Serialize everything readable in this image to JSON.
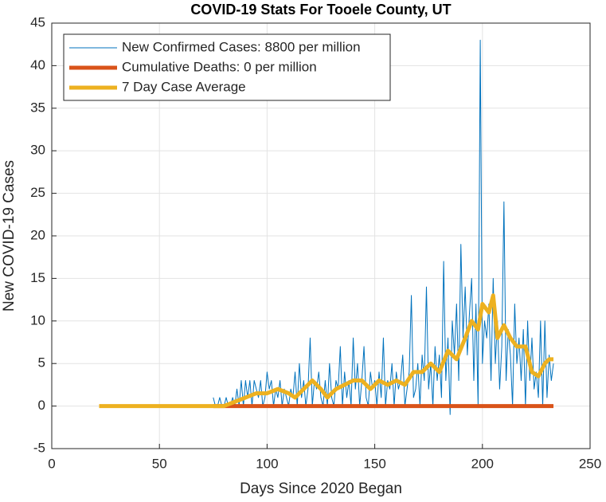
{
  "chart_data": {
    "type": "line",
    "title": "COVID-19 Stats For Tooele County, UT",
    "xlabel": "Days Since 2020 Began",
    "ylabel": "New COVID-19 Cases",
    "xlim": [
      0,
      250
    ],
    "xticks": [
      0,
      50,
      100,
      150,
      200,
      250
    ],
    "ylim": [
      -5,
      45
    ],
    "yticks": [
      -5,
      0,
      5,
      10,
      15,
      20,
      25,
      30,
      35,
      40,
      45
    ],
    "grid": true,
    "legend": "top-left",
    "series": [
      {
        "name": "New Confirmed Cases: 8800 per million",
        "color": "#0072BD",
        "width": 1,
        "x": [
          75,
          76,
          77,
          78,
          79,
          80,
          81,
          82,
          83,
          84,
          85,
          86,
          87,
          88,
          89,
          90,
          91,
          92,
          93,
          94,
          95,
          96,
          97,
          98,
          99,
          100,
          101,
          102,
          103,
          104,
          105,
          106,
          107,
          108,
          109,
          110,
          111,
          112,
          113,
          114,
          115,
          116,
          117,
          118,
          119,
          120,
          121,
          122,
          123,
          124,
          125,
          126,
          127,
          128,
          129,
          130,
          131,
          132,
          133,
          134,
          135,
          136,
          137,
          138,
          139,
          140,
          141,
          142,
          143,
          144,
          145,
          146,
          147,
          148,
          149,
          150,
          151,
          152,
          153,
          154,
          155,
          156,
          157,
          158,
          159,
          160,
          161,
          162,
          163,
          164,
          165,
          166,
          167,
          168,
          169,
          170,
          171,
          172,
          173,
          174,
          175,
          176,
          177,
          178,
          179,
          180,
          181,
          182,
          183,
          184,
          185,
          186,
          187,
          188,
          189,
          190,
          191,
          192,
          193,
          194,
          195,
          196,
          197,
          198,
          199,
          200,
          201,
          202,
          203,
          204,
          205,
          206,
          207,
          208,
          209,
          210,
          211,
          212,
          213,
          214,
          215,
          216,
          217,
          218,
          219,
          220,
          221,
          222,
          223,
          224,
          225,
          226,
          227,
          228,
          229,
          230,
          231,
          232,
          233
        ],
        "values": [
          1,
          0,
          0,
          1,
          0,
          0,
          1,
          0,
          0,
          1,
          0,
          2,
          0,
          3,
          0,
          3,
          1,
          3,
          0,
          3,
          2,
          1,
          3,
          0,
          1,
          4,
          2,
          3,
          0,
          2,
          1,
          3,
          0,
          2,
          1,
          0,
          2,
          1,
          4,
          0,
          5,
          1,
          3,
          0,
          2,
          8,
          0,
          3,
          2,
          4,
          1,
          0,
          3,
          0,
          5,
          1,
          0,
          3,
          2,
          7,
          0,
          4,
          1,
          3,
          0,
          8,
          2,
          5,
          0,
          3,
          7,
          1,
          0,
          4,
          2,
          3,
          0,
          4,
          1,
          8,
          0,
          3,
          2,
          5,
          0,
          4,
          2,
          3,
          6,
          0,
          2,
          4,
          13,
          1,
          2,
          5,
          0,
          6,
          3,
          14,
          2,
          5,
          0,
          7,
          3,
          6,
          1,
          17,
          3,
          8,
          -1,
          10,
          6,
          12,
          3,
          19,
          8,
          14,
          6,
          11,
          15,
          3,
          12,
          0,
          43,
          5,
          10,
          8,
          12,
          3,
          15,
          5,
          10,
          2,
          7,
          24,
          3,
          9,
          6,
          0,
          12,
          5,
          8,
          3,
          9,
          0,
          10,
          3,
          8,
          2,
          4,
          1,
          10,
          0,
          10,
          1,
          6,
          3,
          5
        ]
      },
      {
        "name": "Cumulative Deaths: 0 per million",
        "color": "#D95319",
        "width": 5,
        "x": [
          75,
          233
        ],
        "values": [
          0,
          0
        ]
      },
      {
        "name": "7 Day Case Average",
        "color": "#EDB120",
        "width": 5,
        "x": [
          22,
          75,
          80,
          85,
          90,
          95,
          100,
          105,
          110,
          113,
          117,
          121,
          125,
          128,
          132,
          136,
          140,
          144,
          148,
          152,
          156,
          160,
          164,
          168,
          172,
          176,
          180,
          184,
          188,
          192,
          195,
          198,
          200,
          203,
          205,
          207,
          210,
          213,
          216,
          220,
          223,
          226,
          229,
          231,
          233
        ],
        "values": [
          0,
          0,
          0,
          0.5,
          1,
          1.5,
          1.5,
          2,
          1.5,
          1,
          2,
          3,
          2,
          1,
          2,
          2.5,
          3,
          3,
          2,
          3,
          2.5,
          3,
          2.5,
          4,
          4,
          5,
          4,
          6.5,
          5.5,
          8,
          10,
          9,
          12,
          11,
          13,
          8,
          9.5,
          8,
          7,
          7,
          4,
          3.5,
          5,
          5.5,
          5.5
        ]
      }
    ]
  }
}
